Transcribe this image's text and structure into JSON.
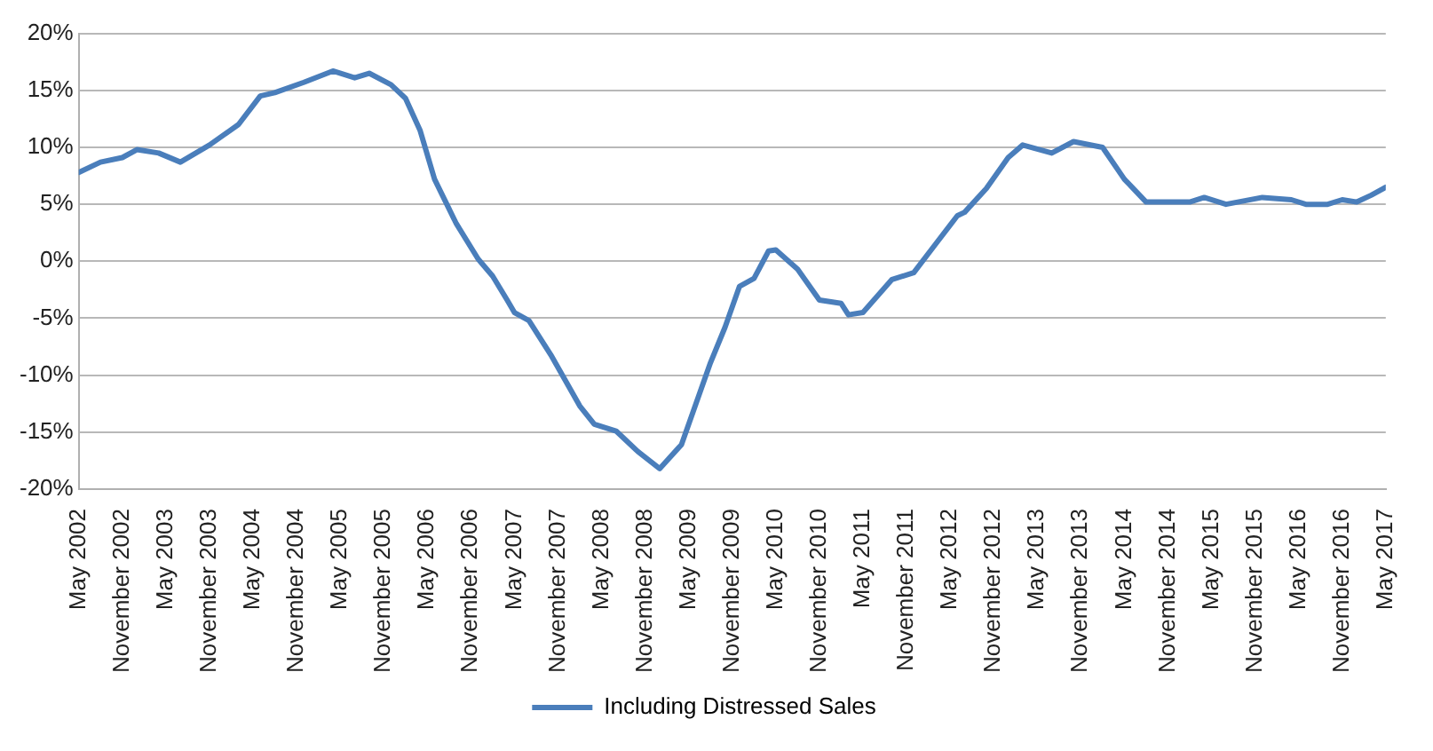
{
  "chart_data": {
    "type": "line",
    "legend": "bottom",
    "grid": "y",
    "marker": "none",
    "line_style": "solid",
    "x": [
      "2002-05",
      "2002-08",
      "2002-11",
      "2003-01",
      "2003-04",
      "2003-07",
      "2003-11",
      "2004-03",
      "2004-06",
      "2004-08",
      "2004-12",
      "2005-04",
      "2005-07",
      "2005-09",
      "2005-12",
      "2006-02",
      "2006-04",
      "2006-06",
      "2006-09",
      "2006-12",
      "2007-02",
      "2007-04",
      "2007-05",
      "2007-07",
      "2007-10",
      "2008-02",
      "2008-04",
      "2008-07",
      "2008-10",
      "2009-01",
      "2009-04",
      "2009-06",
      "2009-08",
      "2009-10",
      "2009-12",
      "2010-02",
      "2010-04",
      "2010-05",
      "2010-08",
      "2010-11",
      "2011-02",
      "2011-03",
      "2011-05",
      "2011-09",
      "2011-12",
      "2012-03",
      "2012-06",
      "2012-07",
      "2012-10",
      "2013-01",
      "2013-03",
      "2013-07",
      "2013-10",
      "2014-02",
      "2014-05",
      "2014-08",
      "2015-02",
      "2015-04",
      "2015-07",
      "2015-12",
      "2016-04",
      "2016-06",
      "2016-09",
      "2016-11",
      "2017-01",
      "2017-03",
      "2017-05"
    ],
    "series": [
      {
        "name": "Including Distressed Sales",
        "color": "#4a7ebb",
        "values": [
          7.8,
          8.7,
          9.1,
          9.8,
          9.5,
          8.7,
          10.2,
          12,
          14.5,
          14.8,
          15.7,
          16.7,
          16.1,
          16.5,
          15.5,
          14.3,
          11.5,
          7.2,
          3.3,
          0.2,
          -1.3,
          -3.4,
          -4.5,
          -5.2,
          -8.2,
          -12.7,
          -14.3,
          -14.9,
          -16.7,
          -18.2,
          -16.1,
          -12.5,
          -8.9,
          -5.8,
          -2.2,
          -1.5,
          0.9,
          1,
          -0.7,
          -3.4,
          -3.7,
          -4.7,
          -4.5,
          -1.6,
          -1,
          1.5,
          4,
          4.3,
          6.4,
          9.1,
          10.2,
          9.5,
          10.5,
          10,
          7.2,
          5.2,
          5.2,
          5.6,
          5,
          5.6,
          5.4,
          5,
          5,
          5.4,
          5.2,
          5.8,
          6.5
        ]
      }
    ],
    "xlim": [
      "2002-05",
      "2017-05"
    ],
    "xticks": [
      {
        "value": "2002-05",
        "label": "May 2002"
      },
      {
        "value": "2002-11",
        "label": "November 2002"
      },
      {
        "value": "2003-05",
        "label": "May 2003"
      },
      {
        "value": "2003-11",
        "label": "November 2003"
      },
      {
        "value": "2004-05",
        "label": "May 2004"
      },
      {
        "value": "2004-11",
        "label": "November 2004"
      },
      {
        "value": "2005-05",
        "label": "May 2005"
      },
      {
        "value": "2005-11",
        "label": "November 2005"
      },
      {
        "value": "2006-05",
        "label": "May 2006"
      },
      {
        "value": "2006-11",
        "label": "November 2006"
      },
      {
        "value": "2007-05",
        "label": "May 2007"
      },
      {
        "value": "2007-11",
        "label": "November 2007"
      },
      {
        "value": "2008-05",
        "label": "May 2008"
      },
      {
        "value": "2008-11",
        "label": "November 2008"
      },
      {
        "value": "2009-05",
        "label": "May 2009"
      },
      {
        "value": "2009-11",
        "label": "November 2009"
      },
      {
        "value": "2010-05",
        "label": "May 2010"
      },
      {
        "value": "2010-11",
        "label": "November 2010"
      },
      {
        "value": "2011-05",
        "label": "May 2011"
      },
      {
        "value": "2011-11",
        "label": "November 2011"
      },
      {
        "value": "2012-05",
        "label": "May 2012"
      },
      {
        "value": "2012-11",
        "label": "November 2012"
      },
      {
        "value": "2013-05",
        "label": "May 2013"
      },
      {
        "value": "2013-11",
        "label": "November 2013"
      },
      {
        "value": "2014-05",
        "label": "May 2014"
      },
      {
        "value": "2014-11",
        "label": "November 2014"
      },
      {
        "value": "2015-05",
        "label": "May 2015"
      },
      {
        "value": "2015-11",
        "label": "November 2015"
      },
      {
        "value": "2016-05",
        "label": "May 2016"
      },
      {
        "value": "2016-11",
        "label": "November 2016"
      },
      {
        "value": "2017-05",
        "label": "May 2017"
      }
    ],
    "ylim": [
      -20,
      20
    ],
    "yticks": [
      {
        "value": -20,
        "label": "-20%"
      },
      {
        "value": -15,
        "label": "-15%"
      },
      {
        "value": -10,
        "label": "-10%"
      },
      {
        "value": -5,
        "label": "-5%"
      },
      {
        "value": 0,
        "label": "0%"
      },
      {
        "value": 5,
        "label": "5%"
      },
      {
        "value": 10,
        "label": "10%"
      },
      {
        "value": 15,
        "label": "15%"
      },
      {
        "value": 20,
        "label": "20%"
      }
    ]
  }
}
